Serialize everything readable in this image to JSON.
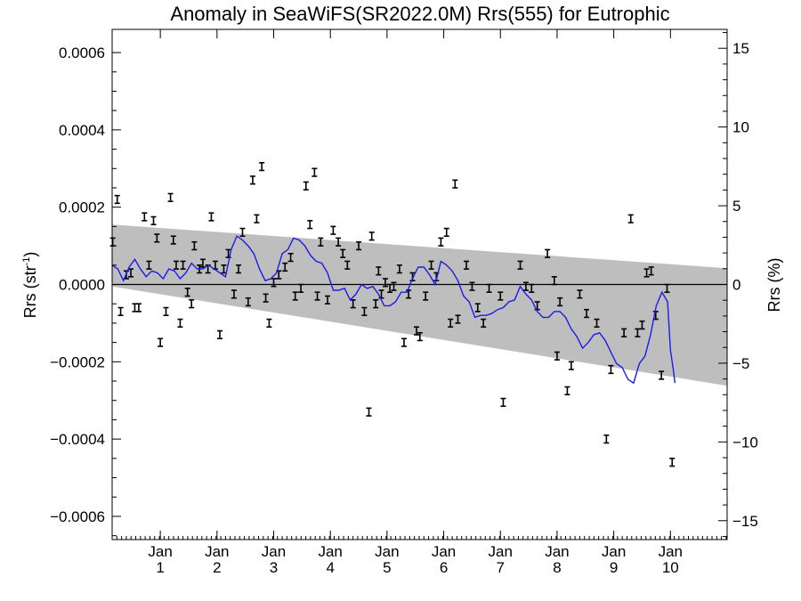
{
  "chart_data": {
    "type": "line",
    "title": "Anomaly in SeaWiFS(SR2022.0M) Rrs(555) for Eutrophic",
    "ylabel_left": {
      "base": "Rrs (str",
      "sup": "-1",
      "end": ")"
    },
    "ylabel_right": "Rrs (%)",
    "xlim": [
      0.15,
      11.0
    ],
    "ylim": [
      -0.00066,
      0.00066
    ],
    "ylim_right": [
      -16.2,
      16.2
    ],
    "x_ticks": [
      {
        "x": 1,
        "top": "Jan",
        "bottom": "1"
      },
      {
        "x": 2,
        "top": "Jan",
        "bottom": "2"
      },
      {
        "x": 3,
        "top": "Jan",
        "bottom": "3"
      },
      {
        "x": 4,
        "top": "Jan",
        "bottom": "4"
      },
      {
        "x": 5,
        "top": "Jan",
        "bottom": "5"
      },
      {
        "x": 6,
        "top": "Jan",
        "bottom": "6"
      },
      {
        "x": 7,
        "top": "Jan",
        "bottom": "7"
      },
      {
        "x": 8,
        "top": "Jan",
        "bottom": "8"
      },
      {
        "x": 9,
        "top": "Jan",
        "bottom": "9"
      },
      {
        "x": 10,
        "top": "Jan",
        "bottom": "10"
      }
    ],
    "y_ticks_left": [
      {
        "v": 0.0006,
        "label": "0.0006"
      },
      {
        "v": 0.0004,
        "label": "0.0004"
      },
      {
        "v": 0.0002,
        "label": "0.0002"
      },
      {
        "v": 0.0,
        "label": "0.0000"
      },
      {
        "v": -0.0002,
        "label": "−0.0002"
      },
      {
        "v": -0.0004,
        "label": "−0.0004"
      },
      {
        "v": -0.0006,
        "label": "−0.0006"
      }
    ],
    "y_ticks_right": [
      {
        "v": 15,
        "label": "15"
      },
      {
        "v": 10,
        "label": "10"
      },
      {
        "v": 5,
        "label": "5"
      },
      {
        "v": 0,
        "label": "0"
      },
      {
        "v": -5,
        "label": "−5"
      },
      {
        "v": -10,
        "label": "−10"
      },
      {
        "v": -15,
        "label": "−15"
      }
    ],
    "zero_line": true,
    "trend_band": {
      "color": "#bebebe",
      "start": [
        0.15,
        0.000155,
        -5e-06
      ],
      "end": [
        11.0,
        4.2e-05,
        -0.000262
      ]
    },
    "error_half_width": 1e-05,
    "points": [
      [
        0.16,
        0.00011
      ],
      [
        0.24,
        0.00022
      ],
      [
        0.3,
        -7e-05
      ],
      [
        0.4,
        2.5e-05
      ],
      [
        0.48,
        3e-05
      ],
      [
        0.55,
        -6e-05
      ],
      [
        0.62,
        -6e-05
      ],
      [
        0.72,
        0.000175
      ],
      [
        0.8,
        5e-05
      ],
      [
        0.88,
        0.000165
      ],
      [
        0.94,
        0.00012
      ],
      [
        1.0,
        -0.00015
      ],
      [
        1.1,
        -7e-05
      ],
      [
        1.18,
        0.000225
      ],
      [
        1.23,
        0.000115
      ],
      [
        1.28,
        5e-05
      ],
      [
        1.35,
        -0.0001
      ],
      [
        1.4,
        5e-05
      ],
      [
        1.48,
        -2e-05
      ],
      [
        1.55,
        -5e-05
      ],
      [
        1.6,
        0.0001
      ],
      [
        1.69,
        4e-05
      ],
      [
        1.75,
        5.5e-05
      ],
      [
        1.84,
        4e-05
      ],
      [
        1.9,
        0.000175
      ],
      [
        1.97,
        5e-05
      ],
      [
        2.05,
        -0.00013
      ],
      [
        2.12,
        4e-05
      ],
      [
        2.2,
        8e-05
      ],
      [
        2.3,
        -2.5e-05
      ],
      [
        2.38,
        4e-05
      ],
      [
        2.45,
        0.000135
      ],
      [
        2.55,
        -4.5e-05
      ],
      [
        2.63,
        0.00027
      ],
      [
        2.7,
        0.00017
      ],
      [
        2.79,
        0.000305
      ],
      [
        2.86,
        -3.5e-05
      ],
      [
        2.92,
        -0.0001
      ],
      [
        3.0,
        5e-06
      ],
      [
        3.09,
        2.5e-05
      ],
      [
        3.2,
        4.5e-05
      ],
      [
        3.3,
        7e-05
      ],
      [
        3.38,
        -3e-05
      ],
      [
        3.48,
        -1e-05
      ],
      [
        3.57,
        0.000255
      ],
      [
        3.64,
        0.000155
      ],
      [
        3.72,
        0.00029
      ],
      [
        3.77,
        -3e-05
      ],
      [
        3.83,
        0.00011
      ],
      [
        3.95,
        -4e-05
      ],
      [
        4.05,
        0.00014
      ],
      [
        4.14,
        0.00011
      ],
      [
        4.22,
        8e-05
      ],
      [
        4.3,
        5e-05
      ],
      [
        4.4,
        -5e-05
      ],
      [
        4.5,
        0.0001
      ],
      [
        4.6,
        -7e-05
      ],
      [
        4.68,
        -0.00033
      ],
      [
        4.73,
        0.000125
      ],
      [
        4.8,
        -5e-05
      ],
      [
        4.85,
        3.5e-05
      ],
      [
        4.9,
        -2.5e-05
      ],
      [
        4.97,
        5e-06
      ],
      [
        5.05,
        -1e-05
      ],
      [
        5.12,
        -5e-06
      ],
      [
        5.22,
        4e-05
      ],
      [
        5.3,
        -0.00015
      ],
      [
        5.38,
        -2.5e-05
      ],
      [
        5.45,
        2e-05
      ],
      [
        5.52,
        -0.00012
      ],
      [
        5.58,
        -0.000135
      ],
      [
        5.68,
        -3e-05
      ],
      [
        5.78,
        5e-05
      ],
      [
        5.87,
        2e-05
      ],
      [
        5.95,
        0.00011
      ],
      [
        6.05,
        0.000135
      ],
      [
        6.12,
        -0.0001
      ],
      [
        6.2,
        0.00026
      ],
      [
        6.25,
        -9e-05
      ],
      [
        6.4,
        5e-05
      ],
      [
        6.5,
        -5e-06
      ],
      [
        6.6,
        -6e-05
      ],
      [
        6.7,
        -0.0001
      ],
      [
        6.8,
        -1e-05
      ],
      [
        7.0,
        -3e-05
      ],
      [
        7.05,
        -0.000305
      ],
      [
        7.35,
        5e-05
      ],
      [
        7.45,
        -5e-06
      ],
      [
        7.55,
        -1e-05
      ],
      [
        7.65,
        -5.5e-05
      ],
      [
        7.83,
        8e-05
      ],
      [
        7.95,
        1e-05
      ],
      [
        8.0,
        -0.000185
      ],
      [
        8.05,
        -4.5e-05
      ],
      [
        8.18,
        -0.000275
      ],
      [
        8.25,
        -0.00021
      ],
      [
        8.4,
        -2.5e-05
      ],
      [
        8.52,
        -7.5e-05
      ],
      [
        8.7,
        -0.0001
      ],
      [
        8.87,
        -0.0004
      ],
      [
        8.95,
        -0.00022
      ],
      [
        9.18,
        -0.000125
      ],
      [
        9.3,
        0.00017
      ],
      [
        9.42,
        -0.000125
      ],
      [
        9.5,
        -0.000105
      ],
      [
        9.58,
        3e-05
      ],
      [
        9.66,
        3.5e-05
      ],
      [
        9.74,
        -8e-05
      ],
      [
        9.84,
        -0.000235
      ],
      [
        9.94,
        -1e-05
      ],
      [
        10.03,
        -0.00046
      ]
    ],
    "series": [
      {
        "color": "#1c1ce6",
        "x": [
          0.15,
          0.25,
          0.35,
          0.45,
          0.55,
          0.65,
          0.75,
          0.85,
          0.95,
          1.05,
          1.15,
          1.25,
          1.35,
          1.45,
          1.55,
          1.65,
          1.75,
          1.85,
          1.95,
          2.05,
          2.15,
          2.25,
          2.35,
          2.45,
          2.55,
          2.65,
          2.75,
          2.85,
          2.95,
          3.05,
          3.15,
          3.25,
          3.35,
          3.45,
          3.55,
          3.65,
          3.75,
          3.85,
          3.95,
          4.05,
          4.15,
          4.25,
          4.35,
          4.45,
          4.55,
          4.65,
          4.75,
          4.85,
          4.95,
          5.05,
          5.15,
          5.25,
          5.35,
          5.45,
          5.55,
          5.65,
          5.75,
          5.85,
          5.95,
          6.05,
          6.15,
          6.25,
          6.35,
          6.45,
          6.55,
          6.65,
          6.75,
          6.85,
          6.95,
          7.05,
          7.15,
          7.25,
          7.35,
          7.45,
          7.55,
          7.65,
          7.75,
          7.85,
          7.95,
          8.05,
          8.15,
          8.25,
          8.35,
          8.45,
          8.55,
          8.65,
          8.75,
          8.85,
          8.95,
          9.05,
          9.15,
          9.25,
          9.35,
          9.45,
          9.55,
          9.65,
          9.75,
          9.85,
          9.95,
          10.0,
          10.05,
          10.08
        ],
        "y": [
          5e-05,
          4e-05,
          1e-05,
          4.5e-05,
          6.5e-05,
          4e-05,
          2e-05,
          3.5e-05,
          3e-05,
          1.5e-05,
          4e-05,
          3.5e-05,
          1.5e-05,
          3e-05,
          5.5e-05,
          4e-05,
          4e-05,
          5e-05,
          4e-05,
          3e-05,
          2e-05,
          9e-05,
          0.000125,
          0.000115,
          0.0001,
          8e-05,
          4e-05,
          1e-05,
          1.5e-05,
          3e-05,
          8e-05,
          9e-05,
          0.00012,
          0.000115,
          0.0001,
          7.5e-05,
          6e-05,
          5.5e-05,
          3e-05,
          -1.5e-05,
          -1.5e-05,
          -1e-05,
          -4e-05,
          -2.5e-05,
          0.0,
          -1e-05,
          -5e-06,
          -2.5e-05,
          -5.5e-05,
          -5.5e-05,
          -4.5e-05,
          -2e-05,
          -2e-05,
          1.5e-05,
          4.5e-05,
          4.5e-05,
          2.5e-05,
          0.0,
          6e-05,
          5e-05,
          3.5e-05,
          1e-05,
          -3e-05,
          -4.5e-05,
          -8.5e-05,
          -8e-05,
          -8e-05,
          -7.5e-05,
          -6.5e-05,
          -6e-05,
          -4.5e-05,
          -4e-05,
          -5e-06,
          -2.5e-05,
          -4e-05,
          -7e-05,
          -8.5e-05,
          -8.5e-05,
          -7e-05,
          -7e-05,
          -8.5e-05,
          -0.000115,
          -0.000135,
          -0.000165,
          -0.00015,
          -0.00013,
          -0.000125,
          -0.000145,
          -0.000175,
          -0.000205,
          -0.000215,
          -0.000245,
          -0.000255,
          -0.000205,
          -0.000185,
          -0.00013,
          -5.5e-05,
          -2e-05,
          -4.5e-05,
          -0.00017,
          -0.00022,
          -0.000255
        ]
      }
    ]
  }
}
